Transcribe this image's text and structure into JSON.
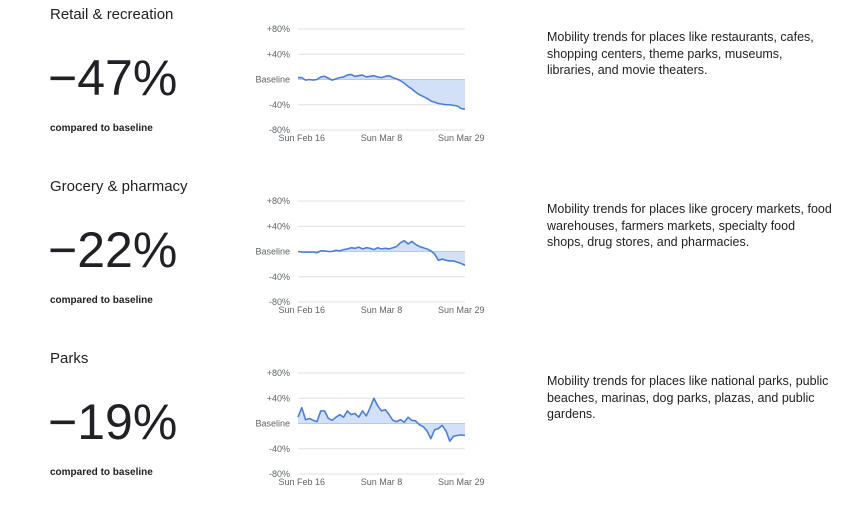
{
  "sections": [
    {
      "title": "Retail & recreation",
      "value": "-47%",
      "compared": "compared to baseline",
      "description": "Mobility trends for places like restaurants, cafes, shopping centers, theme parks, museums, libraries, and movie theaters."
    },
    {
      "title": "Grocery & pharmacy",
      "value": "-22%",
      "compared": "compared to baseline",
      "description": "Mobility trends for places like grocery markets, food warehouses, farmers markets, specialty food shops, drug stores, and pharmacies."
    },
    {
      "title": "Parks",
      "value": "-19%",
      "compared": "compared to baseline",
      "description": "Mobility trends for places like national parks, public beaches, marinas, dog parks, plazas, and public gardens."
    }
  ],
  "chart_data": [
    {
      "type": "area",
      "x_start": "Feb 15",
      "x_ticks": [
        "Sun Feb 16",
        "Sun Mar 8",
        "Sun Mar 29"
      ],
      "y_ticks": [
        "+80%",
        "+40%",
        "Baseline",
        "-40%",
        "-80%"
      ],
      "ylim": [
        -80,
        80
      ],
      "grid": true,
      "line_color": "#4a7fd4",
      "fill_color": "#d2e1f7",
      "values": [
        3,
        3,
        -1,
        0,
        -1,
        0,
        4,
        5,
        2,
        -1,
        1,
        3,
        4,
        7,
        8,
        5,
        6,
        7,
        4,
        5,
        6,
        4,
        3,
        5,
        6,
        3,
        1,
        -2,
        -6,
        -11,
        -15,
        -20,
        -24,
        -27,
        -30,
        -34,
        -36,
        -38,
        -39,
        -40,
        -40,
        -41,
        -42,
        -46,
        -47
      ]
    },
    {
      "type": "area",
      "x_start": "Feb 15",
      "x_ticks": [
        "Sun Feb 16",
        "Sun Mar 8",
        "Sun Mar 29"
      ],
      "y_ticks": [
        "+80%",
        "+40%",
        "Baseline",
        "-40%",
        "-80%"
      ],
      "ylim": [
        -80,
        80
      ],
      "grid": true,
      "line_color": "#4a7fd4",
      "fill_color": "#d2e1f7",
      "values": [
        0,
        -1,
        -1,
        -1,
        -1,
        -2,
        1,
        1,
        0,
        0,
        2,
        1,
        3,
        4,
        6,
        5,
        7,
        4,
        6,
        5,
        3,
        6,
        4,
        5,
        4,
        6,
        8,
        14,
        17,
        12,
        16,
        11,
        8,
        6,
        4,
        1,
        -4,
        -14,
        -12,
        -14,
        -15,
        -15,
        -17,
        -19,
        -22
      ]
    },
    {
      "type": "area",
      "x_start": "Feb 15",
      "x_ticks": [
        "Sun Feb 16",
        "Sun Mar 8",
        "Sun Mar 29"
      ],
      "y_ticks": [
        "+80%",
        "+40%",
        "Baseline",
        "-40%",
        "-80%"
      ],
      "ylim": [
        -80,
        80
      ],
      "grid": true,
      "line_color": "#4a7fd4",
      "fill_color": "#d2e1f7",
      "values": [
        10,
        25,
        6,
        8,
        5,
        3,
        20,
        20,
        8,
        5,
        10,
        14,
        10,
        20,
        14,
        16,
        10,
        20,
        12,
        25,
        40,
        28,
        20,
        22,
        14,
        5,
        3,
        6,
        2,
        10,
        5,
        4,
        -2,
        -5,
        -12,
        -24,
        -10,
        -8,
        -3,
        -12,
        -28,
        -20,
        -19,
        -18,
        -19
      ]
    }
  ]
}
